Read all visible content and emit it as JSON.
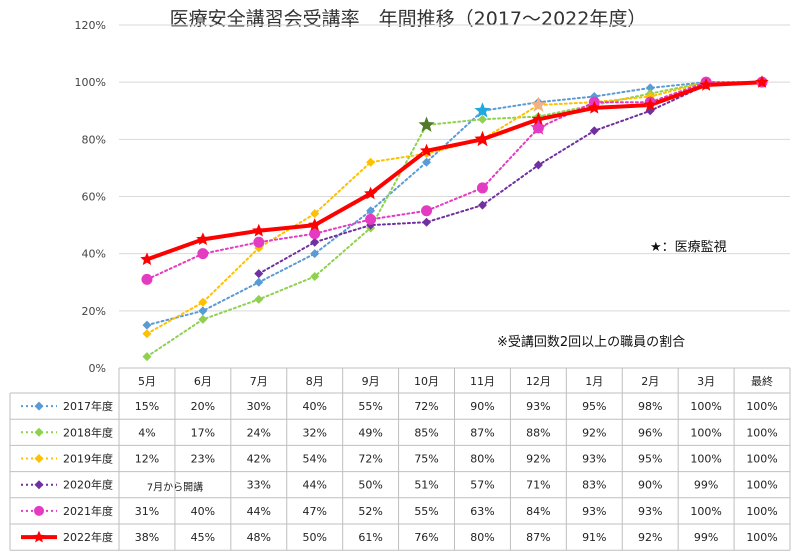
{
  "chart_data": {
    "type": "line",
    "title": "医療安全講習会受講率　年間推移（2017〜2022年度）",
    "categories": [
      "5月",
      "6月",
      "7月",
      "8月",
      "9月",
      "10月",
      "11月",
      "12月",
      "1月",
      "2月",
      "3月",
      "最終"
    ],
    "ylim": [
      0,
      120
    ],
    "yticks": [
      0,
      20,
      40,
      60,
      80,
      100,
      120
    ],
    "ytick_labels": [
      "0%",
      "20%",
      "40%",
      "60%",
      "80%",
      "100%",
      "120%"
    ],
    "grid": true,
    "series": [
      {
        "name": "2017年度",
        "color": "#5b9bd5",
        "marker": "diamond",
        "style": "dotted",
        "values": [
          15,
          20,
          30,
          40,
          55,
          72,
          90,
          93,
          95,
          98,
          100,
          100
        ],
        "labels": [
          "15%",
          "20%",
          "30%",
          "40%",
          "55%",
          "72%",
          "90%",
          "93%",
          "95%",
          "98%",
          "100%",
          "100%"
        ],
        "star_index": 6,
        "star_color": "#1fa9e1"
      },
      {
        "name": "2018年度",
        "color": "#8fd14f",
        "marker": "diamond",
        "style": "dotted",
        "values": [
          4,
          17,
          24,
          32,
          49,
          85,
          87,
          88,
          92,
          96,
          100,
          100
        ],
        "labels": [
          "4%",
          "17%",
          "24%",
          "32%",
          "49%",
          "85%",
          "87%",
          "88%",
          "92%",
          "96%",
          "100%",
          "100%"
        ],
        "star_index": 5,
        "star_color": "#4f7a28"
      },
      {
        "name": "2019年度",
        "color": "#ffc000",
        "marker": "diamond",
        "style": "dotted",
        "values": [
          12,
          23,
          42,
          54,
          72,
          75,
          80,
          92,
          93,
          95,
          100,
          100
        ],
        "labels": [
          "12%",
          "23%",
          "42%",
          "54%",
          "72%",
          "75%",
          "80%",
          "92%",
          "93%",
          "95%",
          "100%",
          "100%"
        ],
        "star_index": 7,
        "star_color": "#f4b183"
      },
      {
        "name": "2020年度",
        "color": "#7030a0",
        "marker": "diamond",
        "style": "dotted",
        "values": [
          null,
          null,
          33,
          44,
          50,
          51,
          57,
          71,
          83,
          90,
          99,
          100
        ],
        "labels": [
          "",
          "",
          "33%",
          "44%",
          "50%",
          "51%",
          "57%",
          "71%",
          "83%",
          "90%",
          "99%",
          "100%"
        ],
        "start_note": "7月から開講"
      },
      {
        "name": "2021年度",
        "color": "#e33bc2",
        "marker": "circle",
        "style": "dotted",
        "values": [
          31,
          40,
          44,
          47,
          52,
          55,
          63,
          84,
          93,
          93,
          100,
          100
        ],
        "labels": [
          "31%",
          "40%",
          "44%",
          "47%",
          "52%",
          "55%",
          "63%",
          "84%",
          "93%",
          "93%",
          "100%",
          "100%"
        ],
        "star_index": 7,
        "star_color": "#e33bc2"
      },
      {
        "name": "2022年度",
        "color": "#ff0000",
        "marker": "star",
        "style": "solid",
        "values": [
          38,
          45,
          48,
          50,
          61,
          76,
          80,
          87,
          91,
          92,
          99,
          100
        ],
        "labels": [
          "38%",
          "45%",
          "48%",
          "50%",
          "61%",
          "76%",
          "80%",
          "87%",
          "91%",
          "92%",
          "99%",
          "100%"
        ],
        "star_index": 6,
        "star_color": "#ff0000"
      }
    ],
    "annotations": [
      {
        "id": "star-note",
        "text": "★：医療監視"
      },
      {
        "id": "footnote",
        "text": "※受講回数2回以上の職員の割合"
      }
    ]
  }
}
